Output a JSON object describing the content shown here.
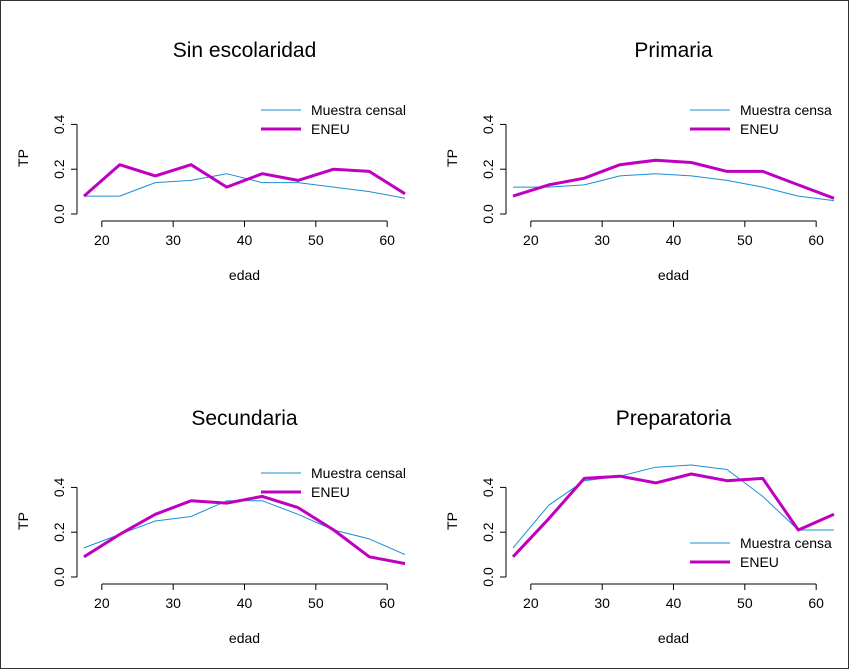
{
  "figure": {
    "border": true
  },
  "colors": {
    "census": "#1a8fd0",
    "eneu": "#c000c0",
    "axis": "#000000"
  },
  "chart_data": [
    {
      "type": "line",
      "title": "Sin escolaridad",
      "xlabel": "edad",
      "ylabel": "TP",
      "xlim": [
        17.5,
        62.5
      ],
      "ylim": [
        0,
        0.5
      ],
      "xticks": [
        20,
        30,
        40,
        50,
        60
      ],
      "yticks": [
        0.0,
        0.2,
        0.4
      ],
      "ytick_labels": [
        "0.0",
        "0.2",
        "0.4"
      ],
      "x": [
        17.5,
        22.5,
        27.5,
        32.5,
        37.5,
        42.5,
        47.5,
        52.5,
        57.5,
        62.5
      ],
      "legend_position": "top-right",
      "series": [
        {
          "name": "Muestra censal",
          "color": "#1a8fd0",
          "width": 1,
          "values": [
            0.08,
            0.08,
            0.14,
            0.15,
            0.18,
            0.14,
            0.14,
            0.12,
            0.1,
            0.07
          ]
        },
        {
          "name": "ENEU",
          "color": "#c000c0",
          "width": 3,
          "values": [
            0.08,
            0.22,
            0.17,
            0.22,
            0.12,
            0.18,
            0.15,
            0.2,
            0.19,
            0.09
          ]
        }
      ]
    },
    {
      "type": "line",
      "title": "Primaria",
      "xlabel": "edad",
      "ylabel": "TP",
      "xlim": [
        17.5,
        62.5
      ],
      "ylim": [
        0,
        0.5
      ],
      "xticks": [
        20,
        30,
        40,
        50,
        60
      ],
      "yticks": [
        0.0,
        0.2,
        0.4
      ],
      "ytick_labels": [
        "0.0",
        "0.2",
        "0.4"
      ],
      "x": [
        17.5,
        22.5,
        27.5,
        32.5,
        37.5,
        42.5,
        47.5,
        52.5,
        57.5,
        62.5
      ],
      "legend_position": "top-right",
      "series": [
        {
          "name": "Muestra censa",
          "color": "#1a8fd0",
          "width": 1,
          "values": [
            0.12,
            0.12,
            0.13,
            0.17,
            0.18,
            0.17,
            0.15,
            0.12,
            0.08,
            0.06
          ]
        },
        {
          "name": "ENEU",
          "color": "#c000c0",
          "width": 3,
          "values": [
            0.08,
            0.13,
            0.16,
            0.22,
            0.24,
            0.23,
            0.19,
            0.19,
            0.13,
            0.07
          ]
        }
      ]
    },
    {
      "type": "line",
      "title": "Secundaria",
      "xlabel": "edad",
      "ylabel": "TP",
      "xlim": [
        17.5,
        62.5
      ],
      "ylim": [
        0,
        0.5
      ],
      "xticks": [
        20,
        30,
        40,
        50,
        60
      ],
      "yticks": [
        0.0,
        0.2,
        0.4
      ],
      "ytick_labels": [
        "0.0",
        "0.2",
        "0.4"
      ],
      "x": [
        17.5,
        22.5,
        27.5,
        32.5,
        37.5,
        42.5,
        47.5,
        52.5,
        57.5,
        62.5
      ],
      "legend_position": "top-right",
      "series": [
        {
          "name": "Muestra censal",
          "color": "#1a8fd0",
          "width": 1,
          "values": [
            0.13,
            0.19,
            0.25,
            0.27,
            0.34,
            0.34,
            0.28,
            0.21,
            0.17,
            0.1
          ]
        },
        {
          "name": "ENEU",
          "color": "#c000c0",
          "width": 3,
          "values": [
            0.09,
            0.19,
            0.28,
            0.34,
            0.33,
            0.36,
            0.31,
            0.21,
            0.09,
            0.06
          ]
        }
      ]
    },
    {
      "type": "line",
      "title": "Preparatoria",
      "xlabel": "edad",
      "ylabel": "TP",
      "xlim": [
        17.5,
        62.5
      ],
      "ylim": [
        0,
        0.5
      ],
      "xticks": [
        20,
        30,
        40,
        50,
        60
      ],
      "yticks": [
        0.0,
        0.2,
        0.4
      ],
      "ytick_labels": [
        "0.0",
        "0.2",
        "0.4"
      ],
      "x": [
        17.5,
        22.5,
        27.5,
        32.5,
        37.5,
        42.5,
        47.5,
        52.5,
        57.5,
        62.5
      ],
      "legend_position": "bottom-right",
      "series": [
        {
          "name": "Muestra censa",
          "color": "#1a8fd0",
          "width": 1,
          "values": [
            0.13,
            0.32,
            0.43,
            0.45,
            0.49,
            0.5,
            0.48,
            0.36,
            0.21,
            0.21
          ]
        },
        {
          "name": "ENEU",
          "color": "#c000c0",
          "width": 3,
          "values": [
            0.09,
            0.26,
            0.44,
            0.45,
            0.42,
            0.46,
            0.43,
            0.44,
            0.21,
            0.28
          ]
        }
      ]
    }
  ]
}
